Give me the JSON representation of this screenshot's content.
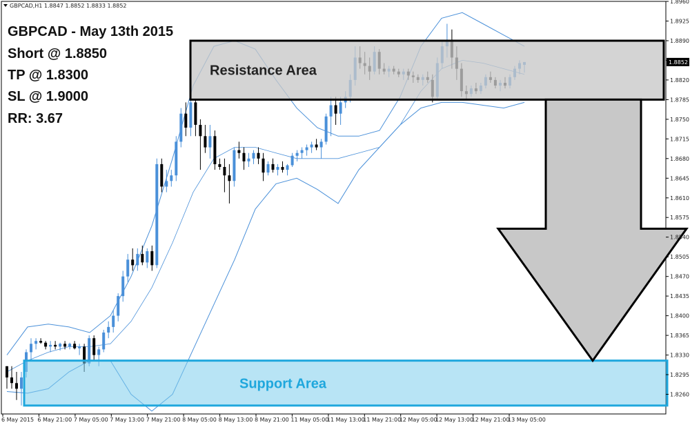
{
  "chart_data": {
    "type": "candlestick",
    "header": "GBPCAD,H1  1.8847 1.8852 1.8833 1.8852",
    "notes": [
      "GBPCAD - May 13th 2015",
      "Short @ 1.8850",
      "TP @ 1.8300",
      "SL @ 1.9000",
      "RR: 3.67"
    ],
    "current_price": "1.8852",
    "ylim": [
      1.8225,
      1.896
    ],
    "y_ticks": [
      "1.8960",
      "1.8925",
      "1.8890",
      "1.8855",
      "1.8820",
      "1.8785",
      "1.8750",
      "1.8715",
      "1.8680",
      "1.8645",
      "1.8610",
      "1.8575",
      "1.8540",
      "1.8505",
      "1.8470",
      "1.8435",
      "1.8400",
      "1.8365",
      "1.8330",
      "1.8295",
      "1.8260"
    ],
    "x_ticks": [
      "6 May 2015",
      "6 May 21:00",
      "7 May 05:00",
      "7 May 13:00",
      "7 May 21:00",
      "8 May 05:00",
      "8 May 13:00",
      "8 May 21:00",
      "11 May 05:00",
      "11 May 13:00",
      "11 May 21:00",
      "12 May 05:00",
      "12 May 13:00",
      "12 May 21:00",
      "13 May 05:00"
    ],
    "candles": [
      [
        1.831,
        1.831,
        1.827,
        1.829
      ],
      [
        1.829,
        1.831,
        1.827,
        1.828
      ],
      [
        1.828,
        1.83,
        1.825,
        1.827
      ],
      [
        1.827,
        1.83,
        1.824,
        1.829
      ],
      [
        1.83,
        1.834,
        1.829,
        1.8335
      ],
      [
        1.8335,
        1.836,
        1.832,
        1.835
      ],
      [
        1.835,
        1.836,
        1.834,
        1.8355
      ],
      [
        1.8355,
        1.836,
        1.835,
        1.8352
      ],
      [
        1.8352,
        1.8355,
        1.834,
        1.8345
      ],
      [
        1.8345,
        1.8355,
        1.8335,
        1.8348
      ],
      [
        1.8348,
        1.8355,
        1.834,
        1.8345
      ],
      [
        1.8345,
        1.8352,
        1.8338,
        1.835
      ],
      [
        1.835,
        1.8355,
        1.834,
        1.8345
      ],
      [
        1.8345,
        1.8352,
        1.834,
        1.835
      ],
      [
        1.835,
        1.8355,
        1.834,
        1.8342
      ],
      [
        1.8342,
        1.835,
        1.833,
        1.8345
      ],
      [
        1.8345,
        1.835,
        1.83,
        1.8315
      ],
      [
        1.8315,
        1.8365,
        1.831,
        1.836
      ],
      [
        1.836,
        1.8365,
        1.832,
        1.833
      ],
      [
        1.833,
        1.8345,
        1.831,
        1.834
      ],
      [
        1.834,
        1.8375,
        1.8335,
        1.837
      ],
      [
        1.837,
        1.839,
        1.836,
        1.838
      ],
      [
        1.838,
        1.841,
        1.837,
        1.84
      ],
      [
        1.84,
        1.844,
        1.839,
        1.8435
      ],
      [
        1.8435,
        1.848,
        1.8425,
        1.847
      ],
      [
        1.847,
        1.851,
        1.846,
        1.85
      ],
      [
        1.85,
        1.852,
        1.848,
        1.849
      ],
      [
        1.849,
        1.852,
        1.848,
        1.851
      ],
      [
        1.851,
        1.8525,
        1.849,
        1.8495
      ],
      [
        1.8495,
        1.852,
        1.8485,
        1.8515
      ],
      [
        1.8515,
        1.8525,
        1.848,
        1.849
      ],
      [
        1.849,
        1.868,
        1.8485,
        1.867
      ],
      [
        1.867,
        1.868,
        1.862,
        1.863
      ],
      [
        1.863,
        1.866,
        1.862,
        1.864
      ],
      [
        1.864,
        1.866,
        1.863,
        1.865
      ],
      [
        1.865,
        1.872,
        1.864,
        1.871
      ],
      [
        1.871,
        1.877,
        1.87,
        1.876
      ],
      [
        1.876,
        1.878,
        1.872,
        1.8735
      ],
      [
        1.8735,
        1.879,
        1.872,
        1.878
      ],
      [
        1.878,
        1.8785,
        1.872,
        1.874
      ],
      [
        1.874,
        1.875,
        1.866,
        1.872
      ],
      [
        1.872,
        1.874,
        1.869,
        1.87
      ],
      [
        1.87,
        1.874,
        1.868,
        1.872
      ],
      [
        1.872,
        1.873,
        1.866,
        1.867
      ],
      [
        1.867,
        1.868,
        1.866,
        1.8665
      ],
      [
        1.8665,
        1.868,
        1.862,
        1.865
      ],
      [
        1.865,
        1.867,
        1.86,
        1.864
      ],
      [
        1.864,
        1.87,
        1.863,
        1.8695
      ],
      [
        1.8695,
        1.871,
        1.868,
        1.869
      ],
      [
        1.869,
        1.87,
        1.866,
        1.8675
      ],
      [
        1.8675,
        1.869,
        1.8665,
        1.868
      ],
      [
        1.868,
        1.8695,
        1.867,
        1.869
      ],
      [
        1.869,
        1.87,
        1.867,
        1.868
      ],
      [
        1.868,
        1.869,
        1.864,
        1.8655
      ],
      [
        1.8655,
        1.8675,
        1.865,
        1.867
      ],
      [
        1.867,
        1.868,
        1.8655,
        1.866
      ],
      [
        1.866,
        1.867,
        1.865,
        1.8665
      ],
      [
        1.8665,
        1.8675,
        1.8655,
        1.866
      ],
      [
        1.866,
        1.867,
        1.865,
        1.8668
      ],
      [
        1.8668,
        1.869,
        1.8665,
        1.8685
      ],
      [
        1.8685,
        1.8695,
        1.8675,
        1.869
      ],
      [
        1.869,
        1.87,
        1.868,
        1.8695
      ],
      [
        1.8695,
        1.8705,
        1.8685,
        1.87
      ],
      [
        1.87,
        1.871,
        1.869,
        1.8705
      ],
      [
        1.8705,
        1.8715,
        1.8695,
        1.87
      ],
      [
        1.87,
        1.8715,
        1.868,
        1.871
      ],
      [
        1.871,
        1.876,
        1.8705,
        1.8755
      ],
      [
        1.8755,
        1.879,
        1.872,
        1.8775
      ],
      [
        1.8775,
        1.879,
        1.874,
        1.876
      ],
      [
        1.876,
        1.879,
        1.874,
        1.878
      ],
      [
        1.878,
        1.88,
        1.877,
        1.879
      ],
      [
        1.879,
        1.883,
        1.878,
        1.882
      ],
      [
        1.882,
        1.888,
        1.881,
        1.886
      ],
      [
        1.886,
        1.888,
        1.884,
        1.885
      ],
      [
        1.885,
        1.887,
        1.883,
        1.8845
      ],
      [
        1.8845,
        1.886,
        1.882,
        1.8835
      ],
      [
        1.8835,
        1.888,
        1.883,
        1.887
      ],
      [
        1.887,
        1.8875,
        1.883,
        1.884
      ],
      [
        1.884,
        1.885,
        1.883,
        1.8835
      ],
      [
        1.8835,
        1.8845,
        1.8825,
        1.884
      ],
      [
        1.884,
        1.8845,
        1.883,
        1.8835
      ],
      [
        1.8835,
        1.884,
        1.8825,
        1.883
      ],
      [
        1.883,
        1.884,
        1.882,
        1.8835
      ],
      [
        1.8835,
        1.884,
        1.882,
        1.8828
      ],
      [
        1.8828,
        1.8835,
        1.8815,
        1.8825
      ],
      [
        1.8825,
        1.883,
        1.8815,
        1.882
      ],
      [
        1.882,
        1.883,
        1.881,
        1.8825
      ],
      [
        1.8825,
        1.8835,
        1.8815,
        1.882
      ],
      [
        1.882,
        1.883,
        1.878,
        1.879
      ],
      [
        1.879,
        1.886,
        1.8785,
        1.885
      ],
      [
        1.885,
        1.889,
        1.884,
        1.888
      ],
      [
        1.888,
        1.892,
        1.886,
        1.889
      ],
      [
        1.889,
        1.891,
        1.884,
        1.886
      ],
      [
        1.886,
        1.888,
        1.882,
        1.884
      ],
      [
        1.884,
        1.885,
        1.879,
        1.88
      ],
      [
        1.88,
        1.881,
        1.8785,
        1.8795
      ],
      [
        1.8795,
        1.881,
        1.879,
        1.8805
      ],
      [
        1.8805,
        1.8815,
        1.8795,
        1.88
      ],
      [
        1.88,
        1.8815,
        1.8795,
        1.881
      ],
      [
        1.881,
        1.883,
        1.8805,
        1.8825
      ],
      [
        1.8825,
        1.8835,
        1.8815,
        1.882
      ],
      [
        1.882,
        1.8825,
        1.8805,
        1.881
      ],
      [
        1.881,
        1.882,
        1.88,
        1.8815
      ],
      [
        1.8815,
        1.8825,
        1.8805,
        1.881
      ],
      [
        1.881,
        1.883,
        1.8805,
        1.8825
      ],
      [
        1.8825,
        1.8845,
        1.882,
        1.884
      ],
      [
        1.884,
        1.8855,
        1.883,
        1.885
      ],
      [
        1.8847,
        1.8852,
        1.8833,
        1.8852
      ]
    ],
    "bands": {
      "upper": [
        1.833,
        1.838,
        1.8385,
        1.838,
        1.837,
        1.84,
        1.847,
        1.856,
        1.868,
        1.881,
        1.888,
        1.889,
        1.8875,
        1.882,
        1.877,
        1.8735,
        1.872,
        1.872,
        1.873,
        1.879,
        1.888,
        1.893,
        1.894,
        1.892,
        1.89,
        1.888
      ],
      "mid": [
        1.83,
        1.832,
        1.8335,
        1.8345,
        1.8345,
        1.835,
        1.839,
        1.845,
        1.853,
        1.862,
        1.868,
        1.87,
        1.87,
        1.869,
        1.868,
        1.868,
        1.868,
        1.869,
        1.87,
        1.874,
        1.88,
        1.884,
        1.8855,
        1.885,
        1.884,
        1.883
      ],
      "lower": [
        1.8265,
        1.8262,
        1.827,
        1.83,
        1.832,
        1.832,
        1.826,
        1.823,
        1.826,
        1.834,
        1.842,
        1.85,
        1.859,
        1.8635,
        1.8645,
        1.8625,
        1.86,
        1.866,
        1.87,
        1.874,
        1.877,
        1.878,
        1.878,
        1.8775,
        1.877,
        1.878
      ]
    },
    "zones": [
      {
        "label": "Resistance Area",
        "from": 1.8785,
        "to": 1.889
      },
      {
        "label": "Support Area",
        "from": 1.824,
        "to": 1.832
      }
    ],
    "target_arrow": {
      "from": 1.8785,
      "to": 1.832
    }
  }
}
